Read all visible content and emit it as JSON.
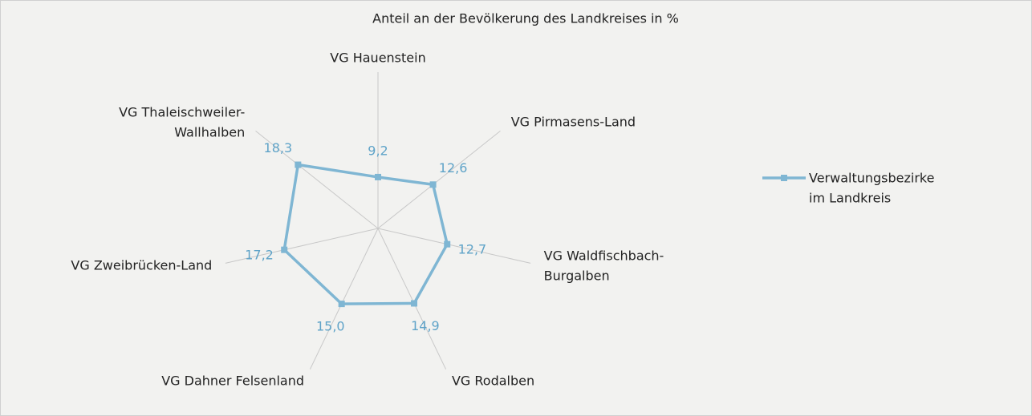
{
  "chart_data": {
    "type": "radar",
    "title": "Anteil an der Bevölkerung des Landkreises in %",
    "categories": [
      "VG Hauenstein",
      "VG Pirmasens-Land",
      "VG Waldfischbach-\nBurgalben",
      "VG Rodalben",
      "VG Dahner Felsenland",
      "VG Zweibrücken-Land",
      "VG Thaleischweiler-\nWallhalben"
    ],
    "rlim": [
      0,
      28
    ],
    "series": [
      {
        "name": "Verwaltungsbezirke\nim Landkreis",
        "color": "#7fb6d3",
        "values": [
          9.2,
          12.6,
          12.7,
          14.9,
          15.0,
          17.2,
          18.3
        ],
        "value_labels": [
          "9,2",
          "12,6",
          "12,7",
          "14,9",
          "15,0",
          "17,2",
          "18,3"
        ]
      }
    ],
    "legend": "right"
  }
}
